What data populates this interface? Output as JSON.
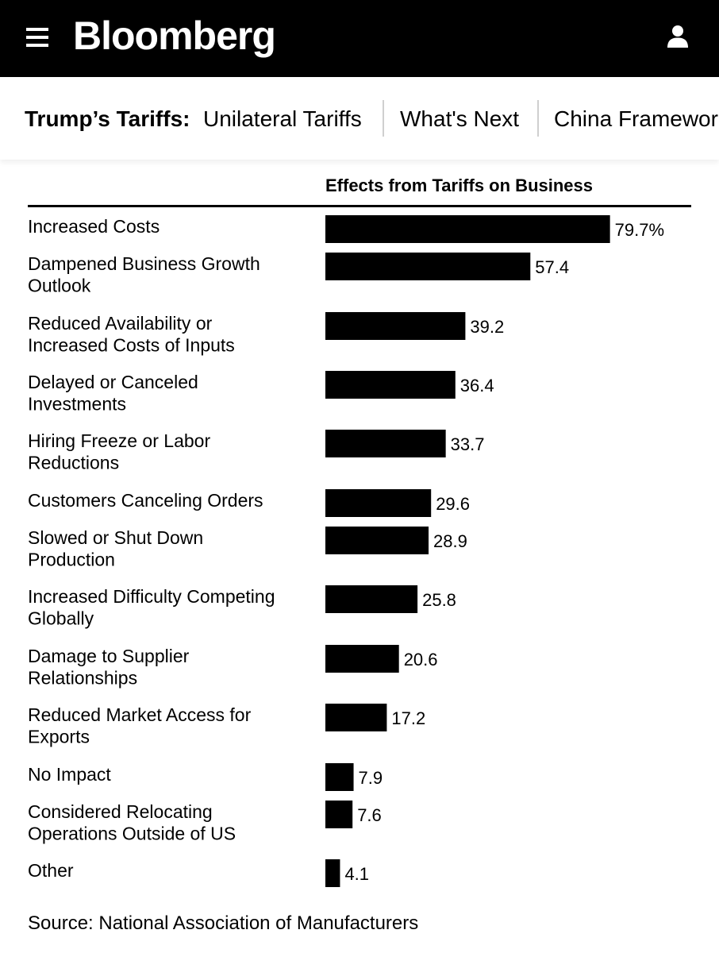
{
  "header": {
    "menu_icon": "hamburger-menu-icon",
    "logo": "Bloomberg",
    "user_icon": "user-account-icon",
    "background": "#000000"
  },
  "subnav": {
    "title": "Trump’s Tariffs:",
    "links": [
      "Unilateral Tariffs",
      "What's Next",
      "China Framewor"
    ]
  },
  "chart_data": {
    "type": "bar",
    "orientation": "horizontal",
    "title": "Effects from Tariffs on Business",
    "categories": [
      [
        "Increased Costs"
      ],
      [
        "Dampened Business Growth",
        "Outlook"
      ],
      [
        "Reduced Availability or",
        "Increased Costs of Inputs"
      ],
      [
        "Delayed or Canceled",
        "Investments"
      ],
      [
        "Hiring Freeze or Labor",
        "Reductions"
      ],
      [
        "Customers Canceling Orders"
      ],
      [
        "Slowed or Shut Down",
        "Production"
      ],
      [
        "Increased Difficulty Competing",
        "Globally"
      ],
      [
        "Damage to Supplier",
        "Relationships"
      ],
      [
        "Reduced Market Access for",
        "Exports"
      ],
      [
        "No Impact"
      ],
      [
        "Considered Relocating",
        "Operations Outside of US"
      ],
      [
        "Other"
      ]
    ],
    "values": [
      79.7,
      57.4,
      39.2,
      36.4,
      33.7,
      29.6,
      28.9,
      25.8,
      20.6,
      17.2,
      7.9,
      7.6,
      4.1
    ],
    "value_labels": [
      "79.7%",
      "57.4",
      "39.2",
      "36.4",
      "33.7",
      "29.6",
      "28.9",
      "25.8",
      "20.6",
      "17.2",
      "7.9",
      "7.6",
      "4.1"
    ],
    "bar_color": "#000000",
    "source": "Source: National Association of Manufacturers"
  }
}
